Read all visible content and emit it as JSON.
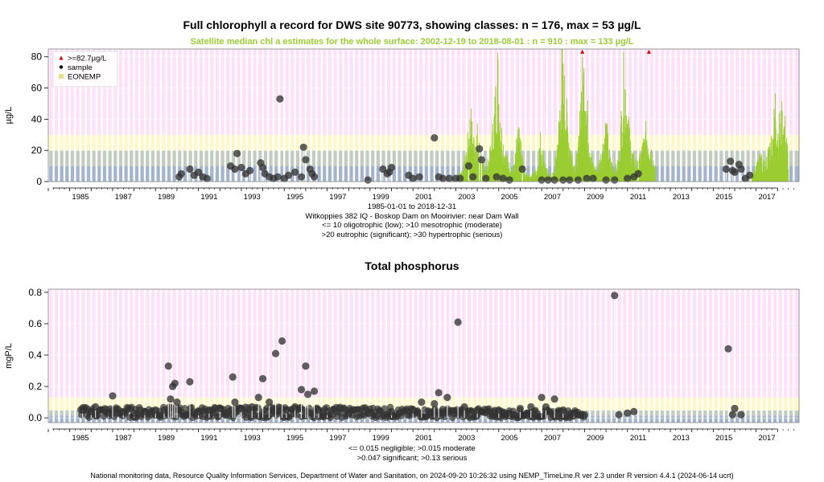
{
  "chart1": {
    "title": "Full chlorophyll a record for DWS site 90773, showing classes: n = 176, max = 53 µg/L",
    "subtitle": "Satellite median chl a estimates for the whole surface: 2002-12-19 to 2018-08-01 : n = 910 : max = 133 µg/L",
    "ylabel": "µg/L",
    "yticks": [
      "0",
      "20",
      "40",
      "60",
      "80"
    ],
    "xticks": [
      "1985",
      "1987",
      "1989",
      "1991",
      "1993",
      "1995",
      "1997",
      "1999",
      "2001",
      "2003",
      "2005",
      "2007",
      "2009",
      "2011",
      "2013",
      "2015",
      "2017"
    ],
    "legend": [
      {
        "label": ">=82.7µg/L",
        "symbol": "triangle",
        "color": "#cc0000"
      },
      {
        "label": "sample",
        "symbol": "dot",
        "color": "#000000"
      },
      {
        "label": "EONEMP",
        "symbol": "square",
        "color": "#e8e08a"
      }
    ],
    "caption_lines": [
      "1985-01-01 to 2018-12-31",
      "Witkoppies 382 IQ - Boskop Dam on Mooirivier: near Dam Wall",
      "<= 10 oligotrophic (low); >10 mesotrophic (moderate)",
      ">20 eutrophic (significant); >30 hypertrophic (serious)"
    ]
  },
  "chart2": {
    "title": "Total phosphorus",
    "ylabel": "mgP/L",
    "yticks": [
      "0.0",
      "0.2",
      "0.4",
      "0.6",
      "0.8"
    ],
    "xticks": [
      "1985",
      "1987",
      "1989",
      "1991",
      "1993",
      "1995",
      "1997",
      "1999",
      "2001",
      "2003",
      "2005",
      "2007",
      "2009",
      "2011",
      "2013",
      "2015",
      "2017"
    ],
    "caption_lines": [
      "<= 0.015 negligible; >0.015 moderate",
      ">0.047 significant; >0.13 serious"
    ]
  },
  "footer": "National monitoring data, Resource Quality Information Services, Department of Water and Sanitation, on 2024-09-20 10:26:32 using NEMP_TimeLine.R ver 2.3 under R version 4.4.1 (2024-06-14 ucrt)",
  "colors": {
    "oligo": "#a3b4cc",
    "meso": "#c3ccc0",
    "eutro": "#fff8c6",
    "hyper": "#ffe0fa",
    "satellite": "#9acd32",
    "sample": "#333333",
    "flag": "#cc0000"
  },
  "chart_data": [
    {
      "type": "scatter",
      "name": "chlorophyll a",
      "xlim": [
        1984.0,
        2019.0
      ],
      "ylim": [
        0,
        85
      ],
      "class_bands": [
        {
          "from": 0,
          "to": 10,
          "class": "oligotrophic"
        },
        {
          "from": 10,
          "to": 20,
          "class": "mesotrophic"
        },
        {
          "from": 20,
          "to": 30,
          "class": "eutrophic"
        },
        {
          "from": 30,
          "to": 85,
          "class": "hypertrophic"
        }
      ],
      "samples": [
        [
          1990.1,
          3
        ],
        [
          1990.2,
          5
        ],
        [
          1990.6,
          8
        ],
        [
          1990.8,
          4
        ],
        [
          1991.0,
          6
        ],
        [
          1991.2,
          3
        ],
        [
          1991.4,
          2
        ],
        [
          1992.5,
          10
        ],
        [
          1992.7,
          8
        ],
        [
          1992.8,
          18
        ],
        [
          1993.0,
          9
        ],
        [
          1993.2,
          5
        ],
        [
          1993.4,
          7
        ],
        [
          1993.9,
          12
        ],
        [
          1994.0,
          9
        ],
        [
          1994.1,
          5
        ],
        [
          1994.3,
          3
        ],
        [
          1994.5,
          2
        ],
        [
          1994.7,
          3
        ],
        [
          1994.8,
          53
        ],
        [
          1995.0,
          2
        ],
        [
          1995.2,
          4
        ],
        [
          1995.5,
          6
        ],
        [
          1995.8,
          3
        ],
        [
          1995.9,
          22
        ],
        [
          1996.0,
          14
        ],
        [
          1996.2,
          8
        ],
        [
          1996.3,
          5
        ],
        [
          1996.4,
          3
        ],
        [
          1998.9,
          1
        ],
        [
          1999.6,
          8
        ],
        [
          1999.8,
          5
        ],
        [
          1999.9,
          6
        ],
        [
          2000.0,
          9
        ],
        [
          2000.8,
          4
        ],
        [
          2001.0,
          2
        ],
        [
          2001.3,
          3
        ],
        [
          2002.0,
          28
        ],
        [
          2002.2,
          3
        ],
        [
          2002.4,
          2
        ],
        [
          2002.7,
          2
        ],
        [
          2003.0,
          2
        ],
        [
          2003.2,
          2
        ],
        [
          2003.6,
          10
        ],
        [
          2003.8,
          3
        ],
        [
          2004.1,
          21
        ],
        [
          2004.2,
          14
        ],
        [
          2004.4,
          2
        ],
        [
          2004.9,
          3
        ],
        [
          2005.2,
          2
        ],
        [
          2005.5,
          1
        ],
        [
          2006.1,
          8
        ],
        [
          2007.0,
          1
        ],
        [
          2007.3,
          1
        ],
        [
          2007.6,
          1
        ],
        [
          2008.0,
          1
        ],
        [
          2008.3,
          1
        ],
        [
          2008.7,
          1
        ],
        [
          2009.1,
          2
        ],
        [
          2009.4,
          2
        ],
        [
          2010.0,
          1
        ],
        [
          2010.4,
          1
        ],
        [
          2011.0,
          2
        ],
        [
          2011.3,
          3
        ],
        [
          2011.5,
          5
        ],
        [
          2015.6,
          8
        ],
        [
          2015.8,
          13
        ],
        [
          2015.9,
          7
        ],
        [
          2016.0,
          6
        ],
        [
          2016.2,
          11
        ],
        [
          2016.3,
          8
        ],
        [
          2016.5,
          2
        ],
        [
          2016.7,
          4
        ]
      ],
      "satellite": [
        [
          2003.0,
          3
        ],
        [
          2003.2,
          6
        ],
        [
          2003.4,
          12
        ],
        [
          2003.5,
          22
        ],
        [
          2003.7,
          48
        ],
        [
          2003.8,
          30
        ],
        [
          2004.0,
          35
        ],
        [
          2004.2,
          14
        ],
        [
          2004.4,
          8
        ],
        [
          2004.6,
          20
        ],
        [
          2004.8,
          50
        ],
        [
          2004.95,
          85
        ],
        [
          2005.1,
          40
        ],
        [
          2005.3,
          20
        ],
        [
          2005.5,
          12
        ],
        [
          2005.7,
          8
        ],
        [
          2005.9,
          35
        ],
        [
          2006.0,
          28
        ],
        [
          2006.2,
          6
        ],
        [
          2006.5,
          4
        ],
        [
          2006.8,
          10
        ],
        [
          2006.95,
          32
        ],
        [
          2007.1,
          18
        ],
        [
          2007.3,
          5
        ],
        [
          2007.6,
          6
        ],
        [
          2007.8,
          40
        ],
        [
          2007.95,
          85
        ],
        [
          2008.1,
          60
        ],
        [
          2008.3,
          30
        ],
        [
          2008.5,
          12
        ],
        [
          2008.7,
          20
        ],
        [
          2008.85,
          70
        ],
        [
          2009.0,
          85
        ],
        [
          2009.2,
          35
        ],
        [
          2009.4,
          12
        ],
        [
          2009.6,
          8
        ],
        [
          2009.8,
          22
        ],
        [
          2010.0,
          42
        ],
        [
          2010.2,
          15
        ],
        [
          2010.4,
          8
        ],
        [
          2010.6,
          15
        ],
        [
          2010.85,
          85
        ],
        [
          2011.0,
          50
        ],
        [
          2011.2,
          20
        ],
        [
          2011.5,
          12
        ],
        [
          2011.7,
          25
        ],
        [
          2011.9,
          38
        ],
        [
          2012.1,
          25
        ],
        [
          2012.3,
          10
        ],
        [
          2016.8,
          5
        ],
        [
          2017.0,
          12
        ],
        [
          2017.2,
          18
        ],
        [
          2017.4,
          10
        ],
        [
          2017.6,
          25
        ],
        [
          2017.8,
          35
        ],
        [
          2017.9,
          64
        ],
        [
          2018.0,
          38
        ],
        [
          2018.2,
          48
        ],
        [
          2018.35,
          40
        ],
        [
          2018.5,
          18
        ]
      ],
      "flagged": [
        [
          2008.9,
          83
        ],
        [
          2012.0,
          83
        ]
      ]
    },
    {
      "type": "scatter",
      "name": "Total phosphorus",
      "xlim": [
        1984.0,
        2019.0
      ],
      "ylim": [
        -0.03,
        0.82
      ],
      "class_bands": [
        {
          "from": -0.03,
          "to": 0.015,
          "class": "negligible"
        },
        {
          "from": 0.015,
          "to": 0.047,
          "class": "moderate"
        },
        {
          "from": 0.047,
          "to": 0.13,
          "class": "significant"
        },
        {
          "from": 0.13,
          "to": 0.82,
          "class": "serious"
        }
      ],
      "samples": [
        [
          1985.6,
          0.05
        ],
        [
          1986.0,
          0.04
        ],
        [
          1986.2,
          0.07
        ],
        [
          1986.8,
          0.03
        ],
        [
          1987.0,
          0.14
        ],
        [
          1987.5,
          0.04
        ],
        [
          1988.0,
          0.03
        ],
        [
          1988.5,
          0.04
        ],
        [
          1989.0,
          0.05
        ],
        [
          1989.4,
          0.05
        ],
        [
          1989.6,
          0.33
        ],
        [
          1989.7,
          0.12
        ],
        [
          1989.8,
          0.2
        ],
        [
          1989.9,
          0.22
        ],
        [
          1990.0,
          0.1
        ],
        [
          1990.6,
          0.23
        ],
        [
          1991.0,
          0.04
        ],
        [
          1991.5,
          0.05
        ],
        [
          1992.0,
          0.06
        ],
        [
          1992.6,
          0.26
        ],
        [
          1992.7,
          0.1
        ],
        [
          1993.0,
          0.06
        ],
        [
          1993.5,
          0.07
        ],
        [
          1993.8,
          0.13
        ],
        [
          1994.0,
          0.25
        ],
        [
          1994.3,
          0.1
        ],
        [
          1994.6,
          0.41
        ],
        [
          1994.9,
          0.49
        ],
        [
          1995.1,
          0.05
        ],
        [
          1995.5,
          0.07
        ],
        [
          1995.8,
          0.18
        ],
        [
          1996.0,
          0.33
        ],
        [
          1996.1,
          0.15
        ],
        [
          1996.4,
          0.17
        ],
        [
          1996.6,
          0.05
        ],
        [
          1997.0,
          0.04
        ],
        [
          1998.0,
          0.03
        ],
        [
          1999.0,
          0.03
        ],
        [
          2000.0,
          0.04
        ],
        [
          2001.0,
          0.05
        ],
        [
          2001.4,
          0.1
        ],
        [
          2002.0,
          0.09
        ],
        [
          2002.2,
          0.16
        ],
        [
          2002.6,
          0.13
        ],
        [
          2003.1,
          0.61
        ],
        [
          2003.4,
          0.07
        ],
        [
          2004.0,
          0.05
        ],
        [
          2005.0,
          0.05
        ],
        [
          2005.5,
          0.03
        ],
        [
          2006.0,
          0.06
        ],
        [
          2006.5,
          0.07
        ],
        [
          2007.0,
          0.13
        ],
        [
          2007.2,
          0.07
        ],
        [
          2007.6,
          0.12
        ],
        [
          2008.0,
          0.05
        ],
        [
          2008.5,
          0.03
        ],
        [
          2009.0,
          0.02
        ],
        [
          2010.4,
          0.78
        ],
        [
          2010.6,
          0.02
        ],
        [
          2011.0,
          0.03
        ],
        [
          2011.3,
          0.04
        ],
        [
          2015.7,
          0.44
        ],
        [
          2015.9,
          0.02
        ],
        [
          2016.0,
          0.06
        ],
        [
          2016.3,
          0.02
        ]
      ],
      "dense_series": [
        {
          "from": 1985.5,
          "to": 2000.0,
          "min": 0.0,
          "max": 0.07
        },
        {
          "from": 2000.0,
          "to": 2005.0,
          "min": 0.0,
          "max": 0.06
        },
        {
          "from": 2005.0,
          "to": 2009.0,
          "min": 0.0,
          "max": 0.05
        }
      ]
    }
  ]
}
